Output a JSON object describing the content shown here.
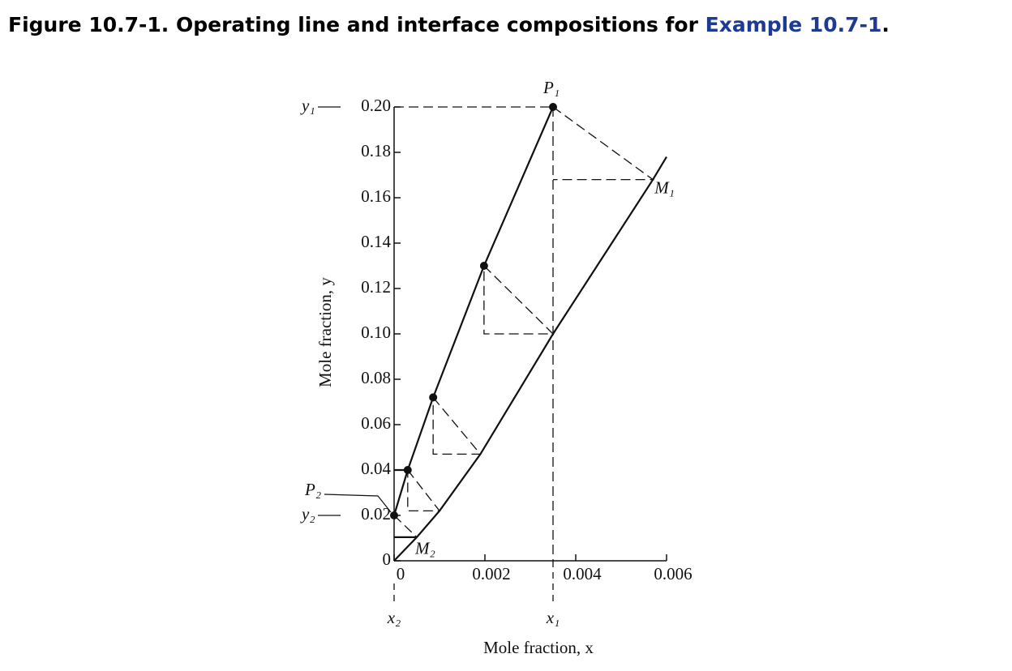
{
  "chart_data": {
    "type": "line",
    "title": "Figure 10.7-1. Operating line and interface compositions for",
    "title_link": "Example 10.7-1",
    "title_end": ".",
    "xlabel": "Mole fraction, x",
    "ylabel": "Mole fraction, y",
    "xlim": [
      0,
      0.006
    ],
    "ylim": [
      0,
      0.2
    ],
    "xticks": [
      0,
      0.002,
      0.004,
      0.006
    ],
    "yticks": [
      0,
      0.02,
      0.04,
      0.06,
      0.08,
      {
        "value": 0.1,
        "label": "0.10"
      },
      0.12,
      0.14,
      0.16,
      0.18,
      {
        "value": 0.2,
        "label": "0.20"
      }
    ],
    "color": "#111111",
    "series": [
      {
        "x": [
          0,
          0.0003,
          0.00086,
          0.00198,
          0.0035
        ],
        "values": [
          0.02,
          0.04,
          0.072,
          0.13,
          0.2
        ],
        "line_style": "solid",
        "markers": true
      },
      {
        "x": [
          0,
          0.0005,
          0.001,
          0.0019,
          0.0035,
          0.0057,
          0.006
        ],
        "values": [
          0,
          0.0104,
          0.022,
          0.047,
          0.1,
          0.168,
          0.178
        ],
        "line_style": "solid",
        "markers": false
      },
      {
        "x": [
          0,
          0.0035
        ],
        "values": [
          0.2,
          0.2
        ],
        "line_style": "dashed"
      },
      {
        "x": [
          0.0035,
          0.0035
        ],
        "values": [
          0.2,
          0
        ],
        "line_style": "dashed"
      },
      {
        "x": [
          0.0035,
          0.0057,
          0.0035
        ],
        "values": [
          0.2,
          0.168,
          0.168
        ],
        "line_style": "dashed"
      },
      {
        "x": [
          0.00198,
          0.0035,
          0.00198,
          0.00198
        ],
        "values": [
          0.13,
          0.1,
          0.1,
          0.13
        ],
        "line_style": "dashed"
      },
      {
        "x": [
          0.00086,
          0.0019,
          0.00086,
          0.00086
        ],
        "values": [
          0.072,
          0.047,
          0.047,
          0.072
        ],
        "line_style": "dashed"
      },
      {
        "x": [
          0.0003,
          0.001,
          0.0003,
          0.0003
        ],
        "values": [
          0.04,
          0.022,
          0.022,
          0.04
        ],
        "line_style": "dashed"
      },
      {
        "x": [
          0,
          0.0005
        ],
        "values": [
          0.02,
          0.0104
        ],
        "line_style": "dashed"
      },
      {
        "x": [
          0,
          0.0005
        ],
        "values": [
          0.0104,
          0.0104
        ],
        "line_style": "solid"
      },
      {
        "x": [
          0,
          0.0003
        ],
        "values": [
          0.04,
          0.04
        ],
        "line_style": "solid"
      }
    ],
    "annotations": [
      "P₁",
      "M₁",
      "P₂",
      "M₂",
      "y₁",
      "y₂",
      "x₁",
      "x₂"
    ]
  }
}
